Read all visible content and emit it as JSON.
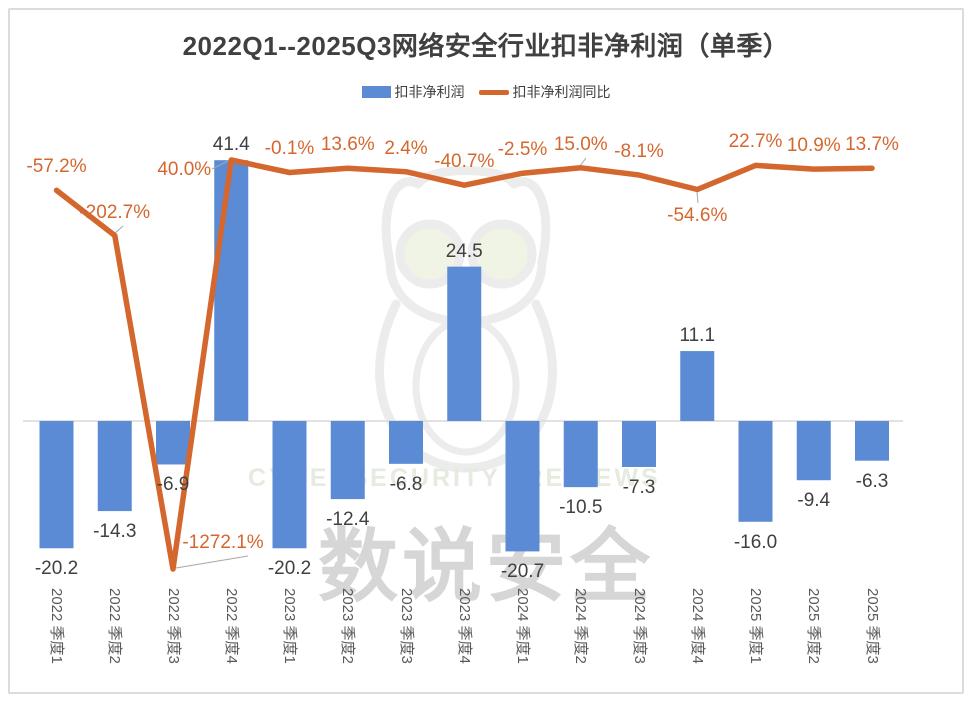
{
  "title": "2022Q1--2025Q3网络安全行业扣非净利润（单季）",
  "legend": {
    "items": [
      {
        "label": "扣非净利润",
        "swatch": "bar-swatch",
        "color": "#5B8BD4"
      },
      {
        "label": "扣非净利润同比",
        "swatch": "line-swatch",
        "color": "#D4672E"
      }
    ]
  },
  "watermark": {
    "logo": "owl-logo",
    "brand_en": "CYBERSECURITY REVIEWS",
    "brand_cn": "数说安全"
  },
  "colors": {
    "bar": "#5B8BD4",
    "line": "#D4672E",
    "bar_label": "#404040",
    "line_label": "#D4672E",
    "axis_tick": "#595959",
    "zero_line": "#D9D9D9",
    "leader": "#A6A6A6",
    "border": "#DCDCDC",
    "title": "#404040"
  },
  "chart_data": {
    "type": "combo bar+line",
    "title": "2022Q1--2025Q3网络安全行业扣非净利润（单季）",
    "categories": [
      "2022 季度1",
      "2022 季度2",
      "2022 季度3",
      "2022 季度4",
      "2023 季度1",
      "2023 季度2",
      "2023 季度3",
      "2023 季度4",
      "2024 季度1",
      "2024 季度2",
      "2024 季度3",
      "2024 季度4",
      "2025 季度1",
      "2025 季度2",
      "2025 季度3"
    ],
    "series": [
      {
        "name": "扣非净利润",
        "type": "bar",
        "axis": "primary",
        "color": "#5B8BD4",
        "values": [
          -20.2,
          -14.3,
          -6.9,
          41.4,
          -20.2,
          -12.4,
          -6.8,
          24.5,
          -20.7,
          -10.5,
          -7.3,
          11.1,
          -16.0,
          -9.4,
          -6.3
        ],
        "labels": [
          "-20.2",
          "-14.3",
          "-6.9",
          "41.4",
          "-20.2",
          "-12.4",
          "-6.8",
          "24.5",
          "-20.7",
          "-10.5",
          "-7.3",
          "11.1",
          "-16.0",
          "-9.4",
          "-6.3"
        ]
      },
      {
        "name": "扣非净利润同比",
        "type": "line",
        "axis": "secondary",
        "color": "#D4672E",
        "values_percent": [
          -57.2,
          -202.7,
          -1272.1,
          40.0,
          -0.1,
          13.6,
          2.4,
          -40.7,
          -2.5,
          15.0,
          -8.1,
          -54.6,
          22.7,
          10.9,
          13.7
        ],
        "labels": [
          "-57.2%",
          "-202.7%",
          "-1272.1%",
          "40.0%",
          "-0.1%",
          "13.6%",
          "2.4%",
          "-40.7%",
          "-2.5%",
          "15.0%",
          "-8.1%",
          "-54.6%",
          "22.7%",
          "10.9%",
          "13.7%"
        ]
      }
    ],
    "axes": {
      "primary_y": {
        "visible": false,
        "implied_range": [
          -25,
          45
        ]
      },
      "secondary_y": {
        "visible": false,
        "implied_range_percent": [
          -1300,
          60
        ]
      },
      "x": {
        "tick_rotation_deg": 90
      }
    },
    "gridlines": "none",
    "zero_line": true,
    "legend_position": "top"
  }
}
